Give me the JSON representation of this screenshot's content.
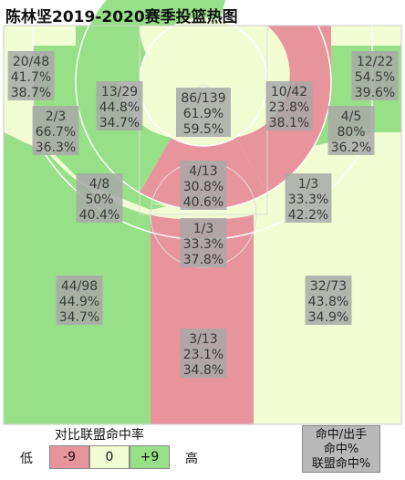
{
  "title": "陈林坚2019-2020赛季投篮热图",
  "colors": {
    "minus9": "#e8949c",
    "zero": "#f2fdd4",
    "plus9": "#97e087",
    "label_bg": "#a8a8a8",
    "line": "#ffffff"
  },
  "chart_data": {
    "type": "heatmap",
    "title": "陈林坚2019-2020赛季投篮热图",
    "zones": [
      {
        "zone": "left-corner-3",
        "made": 20,
        "attempts": 48,
        "text": "20/48",
        "fg_pct": "41.7%",
        "league_pct": "38.7%",
        "color": "zero"
      },
      {
        "zone": "right-corner-3",
        "made": 12,
        "attempts": 22,
        "text": "12/22",
        "fg_pct": "54.5%",
        "league_pct": "39.6%",
        "color": "plus9"
      },
      {
        "zone": "left-baseline-mid",
        "made": 13,
        "attempts": 29,
        "text": "13/29",
        "fg_pct": "44.8%",
        "league_pct": "34.7%",
        "color": "plus9"
      },
      {
        "zone": "restricted-area",
        "made": 86,
        "attempts": 139,
        "text": "86/139",
        "fg_pct": "61.9%",
        "league_pct": "59.5%",
        "color": "zero"
      },
      {
        "zone": "right-baseline-mid",
        "made": 10,
        "attempts": 42,
        "text": "10/42",
        "fg_pct": "23.8%",
        "league_pct": "38.1%",
        "color": "minus9"
      },
      {
        "zone": "left-short-wing-mid",
        "made": 2,
        "attempts": 3,
        "text": "2/3",
        "fg_pct": "66.7%",
        "league_pct": "36.3%",
        "color": "plus9"
      },
      {
        "zone": "right-short-wing-mid",
        "made": 4,
        "attempts": 5,
        "text": "4/5",
        "fg_pct": "80%",
        "league_pct": "36.2%",
        "color": "plus9"
      },
      {
        "zone": "paint-mid",
        "made": 4,
        "attempts": 13,
        "text": "4/13",
        "fg_pct": "30.8%",
        "league_pct": "40.6%",
        "color": "minus9"
      },
      {
        "zone": "left-elbow-mid",
        "made": 4,
        "attempts": 8,
        "text": "4/8",
        "fg_pct": "50%",
        "league_pct": "40.4%",
        "color": "plus9"
      },
      {
        "zone": "right-elbow-mid",
        "made": 1,
        "attempts": 3,
        "text": "1/3",
        "fg_pct": "33.3%",
        "league_pct": "42.2%",
        "color": "zero"
      },
      {
        "zone": "top-key-mid",
        "made": 1,
        "attempts": 3,
        "text": "1/3",
        "fg_pct": "33.3%",
        "league_pct": "37.8%",
        "color": "zero"
      },
      {
        "zone": "left-wing-3",
        "made": 44,
        "attempts": 98,
        "text": "44/98",
        "fg_pct": "44.9%",
        "league_pct": "34.7%",
        "color": "plus9"
      },
      {
        "zone": "right-wing-3",
        "made": 32,
        "attempts": 73,
        "text": "32/73",
        "fg_pct": "43.8%",
        "league_pct": "34.9%",
        "color": "zero"
      },
      {
        "zone": "top-3",
        "made": 3,
        "attempts": 13,
        "text": "3/13",
        "fg_pct": "23.1%",
        "league_pct": "34.8%",
        "color": "minus9"
      }
    ]
  },
  "legend": {
    "title": "对比联盟命中率",
    "low": "低",
    "high": "高",
    "minus_label": "-9",
    "zero_label": "0",
    "plus_label": "+9"
  },
  "key": {
    "line1": "命中/出手",
    "line2": "命中%",
    "line3": "联盟命中%"
  }
}
